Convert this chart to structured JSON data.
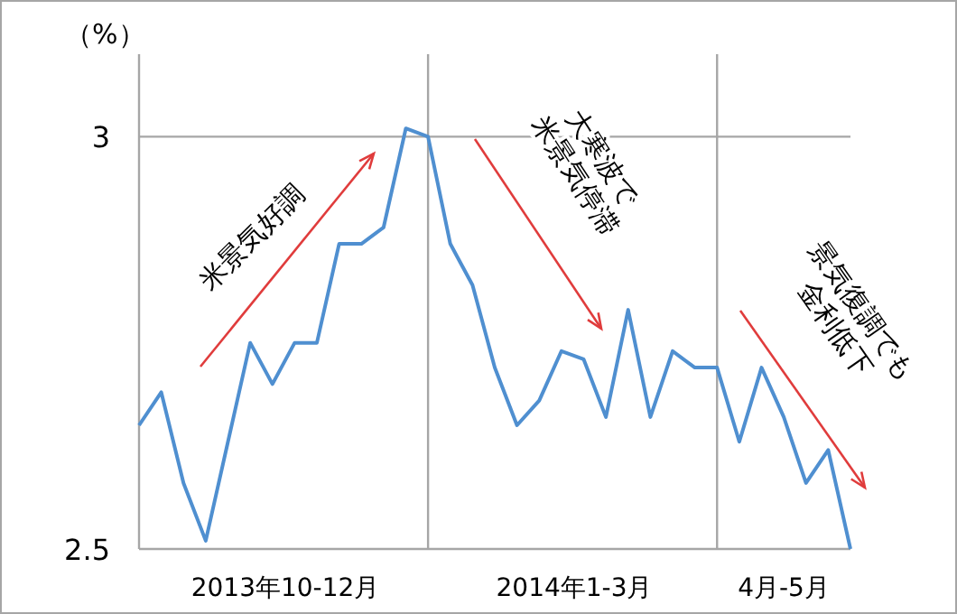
{
  "chart_data": {
    "type": "line",
    "ylabel": "（%）",
    "categories": [
      null,
      null,
      null,
      null,
      null,
      null,
      null,
      null,
      null,
      null,
      null,
      null,
      null,
      null,
      null,
      null,
      null,
      null,
      null,
      null,
      null,
      null,
      null,
      null,
      null,
      null,
      null,
      null,
      null,
      null,
      null,
      null,
      null
    ],
    "series": [
      {
        "color": "#4f8fd0",
        "values": [
          2.65,
          2.69,
          2.58,
          2.51,
          2.63,
          2.75,
          2.7,
          2.75,
          2.75,
          2.87,
          2.87,
          2.89,
          3.01,
          3.0,
          2.87,
          2.82,
          2.72,
          2.65,
          2.68,
          2.74,
          2.73,
          2.66,
          2.79,
          2.66,
          2.74,
          2.72,
          2.72,
          2.63,
          2.72,
          2.66,
          2.58,
          2.62,
          2.5
        ]
      }
    ],
    "ylim": [
      2.5,
      3.1
    ],
    "yticks": [
      2.5,
      3
    ],
    "grid": "y",
    "marker": "none",
    "line_style": "solid",
    "annotations": [
      "米景気好調",
      "大寒波で\n米景気停滞",
      "景気復調でも\n金利低下",
      "2013年10-12月",
      "2014年1-3月",
      "4月-5月"
    ]
  }
}
